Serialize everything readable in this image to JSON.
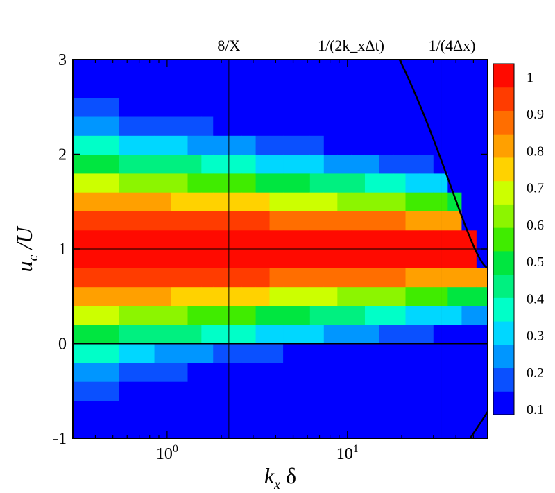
{
  "chart_data": {
    "type": "heatmap",
    "title": "",
    "xlabel": {
      "main": "k",
      "sub": "x",
      "tail": " δ"
    },
    "ylabel": {
      "main": "u",
      "sub": "c",
      "tail": " /U"
    },
    "x_scale": "log",
    "xlim": [
      0.3,
      60
    ],
    "ylim": [
      -1,
      3
    ],
    "x_ticks": [
      {
        "value": 1,
        "base": "10",
        "exp": "0"
      },
      {
        "value": 10,
        "base": "10",
        "exp": "1"
      }
    ],
    "y_ticks": [
      {
        "value": -1,
        "label": "-1"
      },
      {
        "value": 0,
        "label": "0"
      },
      {
        "value": 1,
        "label": "1"
      },
      {
        "value": 2,
        "label": "2"
      },
      {
        "value": 3,
        "label": "3"
      }
    ],
    "reference_lines": [
      {
        "x": 2.2,
        "label": "8/X"
      },
      {
        "x": 33,
        "label": "1/(4Δx)"
      }
    ],
    "top_annotations": [
      {
        "x": 0.9,
        "label": "8/"
      },
      {
        "x": 1.9,
        "label": "1/(2"
      },
      {
        "x": 3.5,
        "label": "1/(4Δ"
      }
    ],
    "resolution_curve_label": "1/(2k_xΔt)",
    "zero_line": 0,
    "unity_line": 1,
    "colorbar": {
      "levels": [
        0.1,
        0.2,
        0.3,
        0.4,
        0.5,
        0.6,
        0.7,
        0.8,
        0.9,
        1
      ],
      "labels": [
        "1",
        "0.9",
        "0.8",
        "0.7",
        "0.6",
        "0.5",
        "0.4",
        "0.3",
        "0.2",
        "0.1"
      ],
      "colors": [
        "#0000ff",
        "#0a50ff",
        "#0096ff",
        "#00d7ff",
        "#00ffc8",
        "#00f080",
        "#00e640",
        "#40ec00",
        "#8cf500",
        "#ccff00",
        "#ffd200",
        "#ffa000",
        "#ff6e00",
        "#ff3c00",
        "#ff0a00"
      ]
    },
    "x_columns": [
      0.3,
      0.54,
      0.85,
      1.05,
      1.3,
      1.55,
      1.8,
      2.2,
      2.6,
      3.1,
      3.7,
      4.4,
      5.2,
      6.2,
      7.4,
      8.8,
      10.5,
      12.5,
      15,
      18,
      21,
      25,
      30,
      36,
      43,
      52,
      60
    ],
    "y_centers": [
      -0.9,
      -0.7,
      -0.5,
      -0.3,
      -0.1,
      0.1,
      0.3,
      0.5,
      0.7,
      0.9,
      1.1,
      1.3,
      1.5,
      1.7,
      1.9,
      2.1,
      2.3,
      2.5,
      2.7,
      2.9
    ],
    "correlation_peak": {
      "center": 1.0,
      "width_low_k": 1.05,
      "width_high_k": 0.55
    }
  }
}
